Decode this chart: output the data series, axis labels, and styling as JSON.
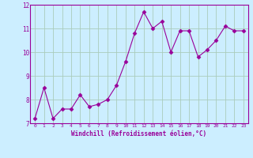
{
  "x": [
    0,
    1,
    2,
    3,
    4,
    5,
    6,
    7,
    8,
    9,
    10,
    11,
    12,
    13,
    14,
    15,
    16,
    17,
    18,
    19,
    20,
    21,
    22,
    23
  ],
  "y": [
    7.2,
    8.5,
    7.2,
    7.6,
    7.6,
    8.2,
    7.7,
    7.8,
    8.0,
    8.6,
    9.6,
    10.8,
    11.7,
    11.0,
    11.3,
    10.0,
    10.9,
    10.9,
    9.8,
    10.1,
    10.5,
    11.1,
    10.9,
    10.9
  ],
  "line_color": "#990099",
  "marker": "D",
  "marker_size": 2.5,
  "bg_color": "#cceeff",
  "grid_color": "#aaccbb",
  "xlabel": "Windchill (Refroidissement éolien,°C)",
  "xlabel_color": "#990099",
  "tick_color": "#990099",
  "ylim": [
    7,
    12
  ],
  "xlim": [
    -0.5,
    23.5
  ],
  "yticks": [
    7,
    8,
    9,
    10,
    11,
    12
  ],
  "xticks": [
    0,
    1,
    2,
    3,
    4,
    5,
    6,
    7,
    8,
    9,
    10,
    11,
    12,
    13,
    14,
    15,
    16,
    17,
    18,
    19,
    20,
    21,
    22,
    23
  ]
}
